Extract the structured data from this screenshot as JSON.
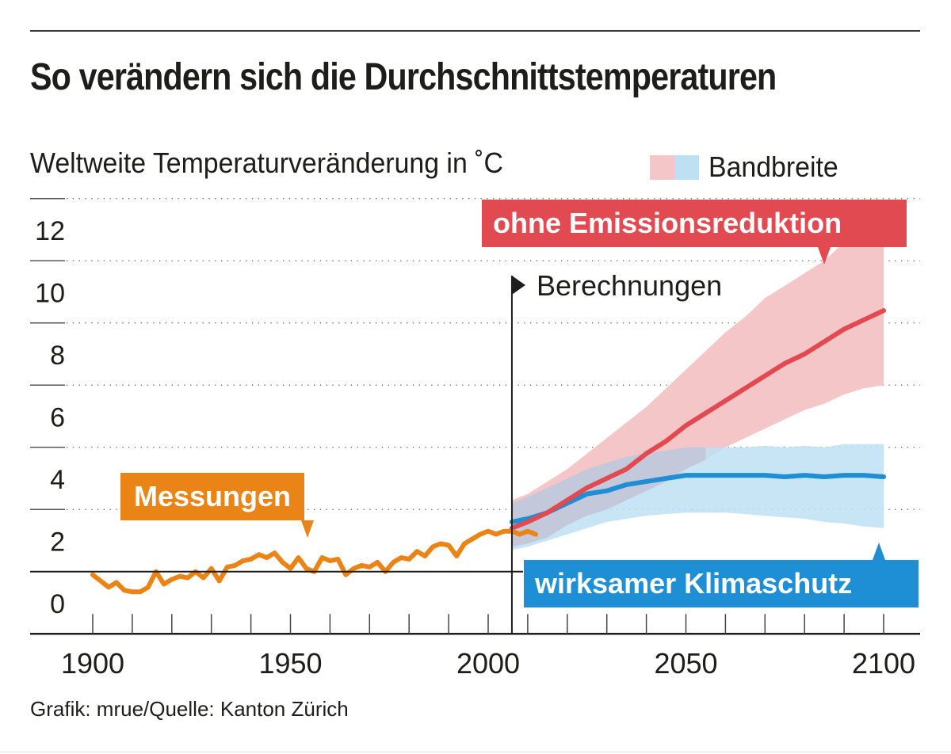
{
  "header": {
    "title": "So verändern sich die Durchschnittstemperaturen",
    "subtitle": "Weltweite Temperaturveränderung in ˚C"
  },
  "legend": {
    "label": "Bandbreite",
    "swatches": [
      {
        "name": "ohne-emissionsreduktion-band",
        "color": "#f5c6c8"
      },
      {
        "name": "wirksamer-klimaschutz-band",
        "color": "#bde0f3"
      }
    ]
  },
  "annotations": {
    "measurements": "Messungen",
    "projections_marker": "Berechnungen",
    "high_scenario": "ohne Emissionsreduktion",
    "low_scenario": "wirksamer Klimaschutz"
  },
  "footer": {
    "source": "Grafik: mrue/Quelle: Kanton Zürich"
  },
  "colors": {
    "measurements": "#ea8416",
    "high_scenario": "#e24a51",
    "high_band": "#f5c6c8",
    "low_scenario": "#1e8fd4",
    "low_band": "#bde0f3",
    "overlap_band": "#c2c4d6",
    "text": "#1d1d1b"
  },
  "chart_data": {
    "type": "line",
    "title": "So verändern sich die Durchschnittstemperaturen",
    "ylabel": "Weltweite Temperaturveränderung in ˚C",
    "xlabel": "",
    "xlim": [
      1890,
      2109
    ],
    "ylim": [
      -1,
      13
    ],
    "x_ticks": [
      1900,
      1950,
      2000,
      2050,
      2100
    ],
    "x_minor_ticks_step": 10,
    "y_ticks": [
      0,
      2,
      4,
      6,
      8,
      10,
      12
    ],
    "reference_line": 1,
    "projection_start_year": 2006,
    "grid": "horizontal-dotted",
    "series": [
      {
        "name": "Messungen",
        "role": "measurements",
        "x": [
          1900,
          1902,
          1904,
          1906,
          1908,
          1910,
          1912,
          1914,
          1916,
          1918,
          1920,
          1922,
          1924,
          1926,
          1928,
          1930,
          1932,
          1934,
          1936,
          1938,
          1940,
          1942,
          1944,
          1946,
          1948,
          1950,
          1952,
          1954,
          1956,
          1958,
          1960,
          1962,
          1964,
          1966,
          1968,
          1970,
          1972,
          1974,
          1976,
          1978,
          1980,
          1982,
          1984,
          1986,
          1988,
          1990,
          1992,
          1994,
          1996,
          1998,
          2000,
          2002,
          2004,
          2006,
          2008,
          2010,
          2012
        ],
        "values": [
          0.9,
          0.7,
          0.5,
          0.65,
          0.4,
          0.35,
          0.35,
          0.5,
          1.0,
          0.6,
          0.75,
          0.85,
          0.8,
          1.0,
          0.8,
          1.1,
          0.7,
          1.15,
          1.2,
          1.35,
          1.4,
          1.55,
          1.45,
          1.6,
          1.3,
          1.1,
          1.45,
          1.1,
          1.0,
          1.45,
          1.35,
          1.4,
          0.9,
          1.1,
          1.2,
          1.15,
          1.3,
          1.0,
          1.3,
          1.45,
          1.4,
          1.65,
          1.5,
          1.8,
          1.9,
          1.85,
          1.5,
          1.9,
          2.05,
          2.2,
          2.3,
          2.2,
          2.3,
          2.3,
          2.2,
          2.3,
          2.2
        ]
      },
      {
        "name": "ohne Emissionsreduktion",
        "role": "high_scenario_mean",
        "x": [
          2006,
          2010,
          2015,
          2020,
          2025,
          2030,
          2035,
          2040,
          2045,
          2050,
          2055,
          2060,
          2065,
          2070,
          2075,
          2080,
          2085,
          2090,
          2095,
          2100
        ],
        "values": [
          2.4,
          2.6,
          2.9,
          3.3,
          3.7,
          4.0,
          4.3,
          4.8,
          5.2,
          5.7,
          6.1,
          6.5,
          6.9,
          7.3,
          7.7,
          8.0,
          8.4,
          8.8,
          9.1,
          9.4
        ]
      },
      {
        "name": "wirksamer Klimaschutz",
        "role": "low_scenario_mean",
        "x": [
          2006,
          2010,
          2015,
          2020,
          2025,
          2030,
          2035,
          2040,
          2045,
          2050,
          2055,
          2060,
          2065,
          2070,
          2075,
          2080,
          2085,
          2090,
          2095,
          2100
        ],
        "values": [
          2.6,
          2.7,
          2.9,
          3.2,
          3.5,
          3.6,
          3.8,
          3.9,
          4.0,
          4.1,
          4.1,
          4.1,
          4.1,
          4.1,
          4.05,
          4.1,
          4.05,
          4.1,
          4.1,
          4.05
        ]
      }
    ],
    "bands": [
      {
        "name": "Bandbreite ohne Emissionsreduktion",
        "x": [
          2006,
          2010,
          2015,
          2020,
          2025,
          2030,
          2035,
          2040,
          2045,
          2050,
          2055,
          2060,
          2065,
          2070,
          2075,
          2080,
          2085,
          2090,
          2095,
          2100
        ],
        "upper": [
          3.3,
          3.5,
          3.9,
          4.3,
          4.8,
          5.3,
          5.8,
          6.3,
          6.9,
          7.5,
          8.1,
          8.7,
          9.2,
          9.8,
          10.2,
          10.6,
          11.0,
          11.6,
          12.0,
          12.3
        ],
        "lower": [
          1.8,
          1.9,
          2.1,
          2.5,
          2.8,
          3.0,
          3.3,
          3.6,
          3.9,
          4.3,
          4.6,
          5.0,
          5.3,
          5.6,
          5.9,
          6.2,
          6.4,
          6.7,
          6.9,
          7.0
        ]
      },
      {
        "name": "Bandbreite wirksamer Klimaschutz",
        "x": [
          2006,
          2010,
          2015,
          2020,
          2025,
          2030,
          2035,
          2040,
          2045,
          2050,
          2055,
          2060,
          2065,
          2070,
          2075,
          2080,
          2085,
          2090,
          2095,
          2100
        ],
        "upper": [
          3.2,
          3.4,
          3.7,
          4.0,
          4.3,
          4.5,
          4.7,
          4.8,
          4.9,
          5.0,
          5.0,
          5.0,
          5.0,
          5.05,
          5.0,
          5.05,
          5.0,
          5.1,
          5.1,
          5.1
        ],
        "lower": [
          1.7,
          1.8,
          2.0,
          2.2,
          2.4,
          2.6,
          2.7,
          2.8,
          2.85,
          2.9,
          2.9,
          2.9,
          2.85,
          2.8,
          2.75,
          2.7,
          2.6,
          2.55,
          2.45,
          2.4
        ]
      }
    ]
  }
}
